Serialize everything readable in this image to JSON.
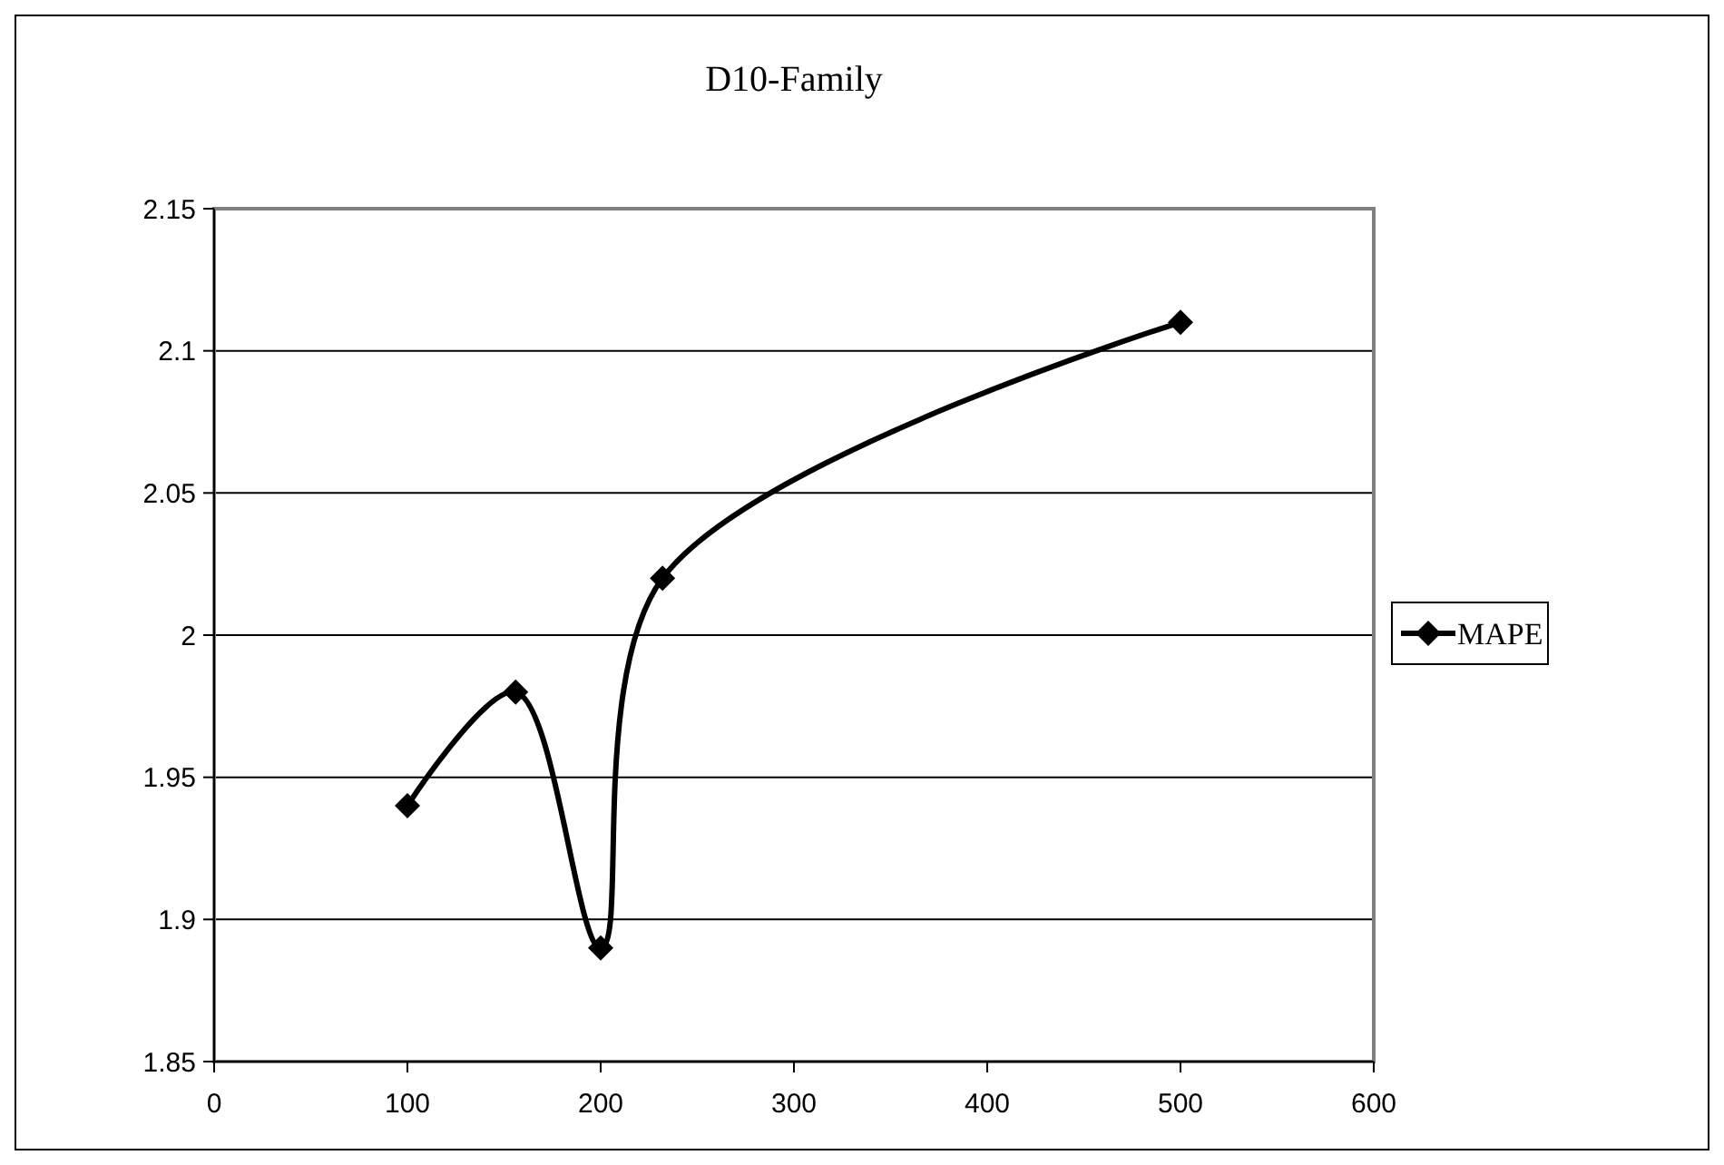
{
  "chart_data": {
    "type": "line",
    "title": "D10-Family",
    "x": [
      100,
      156,
      200,
      232,
      500
    ],
    "series": [
      {
        "name": "MAPE",
        "color": "#000000",
        "values": [
          1.94,
          1.98,
          1.89,
          2.02,
          2.11
        ]
      }
    ],
    "xlim": [
      0,
      600
    ],
    "xticks": [
      0,
      100,
      200,
      300,
      400,
      500,
      600
    ],
    "ylim": [
      1.85,
      2.15
    ],
    "yticks": [
      1.85,
      1.9,
      1.95,
      2,
      2.05,
      2.1,
      2.15
    ],
    "grid": "y",
    "legend": "right",
    "marker": "diamond",
    "line_style": "solid"
  }
}
